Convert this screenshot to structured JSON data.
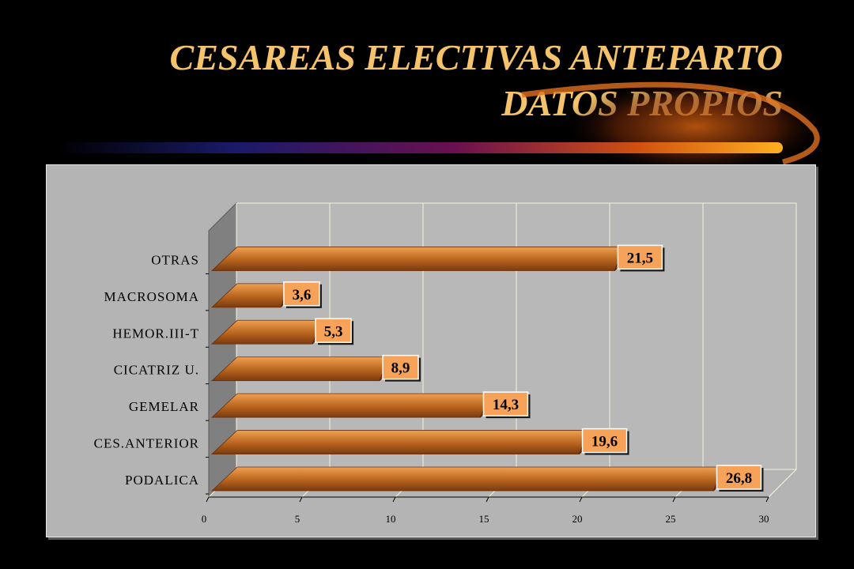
{
  "slide": {
    "title_line1": "CESAREAS ELECTIVAS ANTEPARTO",
    "title_line2": "DATOS PROPIOS"
  },
  "colors": {
    "background": "#000000",
    "title": "#f5c36b",
    "panel": "#b4b4b4",
    "bar_light": "#f0a050",
    "bar_dark": "#7a3a10",
    "label_box": "#f7a259"
  },
  "chart_data": {
    "type": "bar",
    "orientation": "horizontal",
    "categories": [
      "PODALICA",
      "CES.ANTERIOR",
      "GEMELAR",
      "CICATRIZ U.",
      "HEMOR.III-T",
      "MACROSOMA",
      "OTRAS"
    ],
    "values": [
      26.8,
      19.6,
      14.3,
      8.9,
      5.3,
      3.6,
      21.5
    ],
    "value_labels": [
      "26,8",
      "19,6",
      "14,3",
      "8,9",
      "5,3",
      "3,6",
      "21,5"
    ],
    "x_ticks": [
      "0",
      "5",
      "10",
      "15",
      "20",
      "25",
      "30"
    ],
    "xlim": [
      0,
      30
    ],
    "grid": true,
    "legend": "none",
    "style": "3d"
  }
}
